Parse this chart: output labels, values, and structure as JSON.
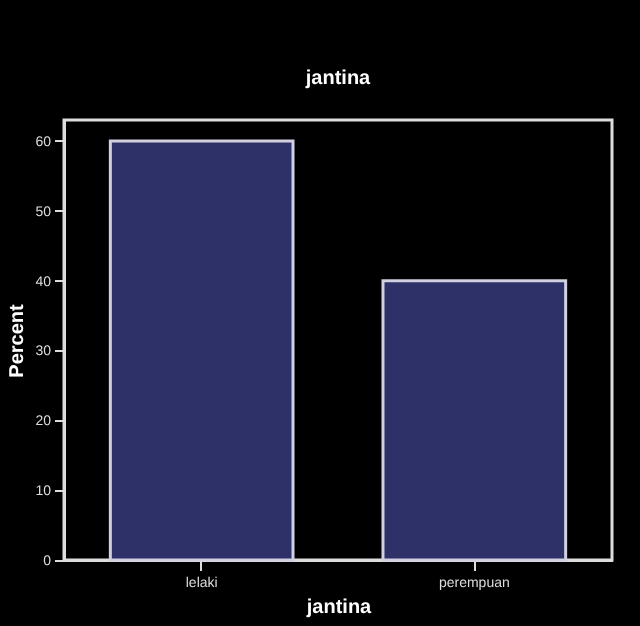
{
  "chart_data": {
    "type": "bar",
    "title": "jantina",
    "xlabel": "jantina",
    "ylabel": "Percent",
    "categories": [
      "lelaki",
      "perempuan"
    ],
    "values": [
      60,
      40
    ],
    "color": "#2e3168",
    "ylim": [
      0,
      63
    ],
    "yticks": [
      0,
      10,
      20,
      30,
      40,
      50,
      60
    ],
    "grid": false
  }
}
